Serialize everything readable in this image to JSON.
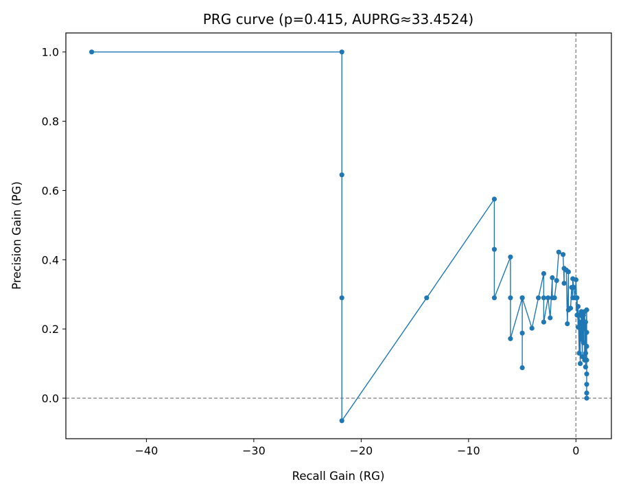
{
  "chart_data": {
    "type": "line",
    "title": "PRG curve (p=0.415, AUPRG≈33.4524)",
    "xlabel": "Recall Gain (RG)",
    "ylabel": "Precision Gain (PG)",
    "xlim": [
      -47.5,
      3.3
    ],
    "ylim": [
      -0.117,
      1.055
    ],
    "x_ticks": [
      -40,
      -30,
      -20,
      -10,
      0
    ],
    "x_tick_labels": [
      "−40",
      "−30",
      "−20",
      "−10",
      "0"
    ],
    "y_ticks": [
      0.0,
      0.2,
      0.4,
      0.6,
      0.8,
      1.0
    ],
    "y_tick_labels": [
      "0.0",
      "0.2",
      "0.4",
      "0.6",
      "0.8",
      "1.0"
    ],
    "reference_lines": [
      {
        "orientation": "vertical",
        "value": 0,
        "style": "dashed",
        "color": "#808080"
      },
      {
        "orientation": "horizontal",
        "value": 0,
        "style": "dashed",
        "color": "#808080"
      }
    ],
    "grid": false,
    "series": [
      {
        "color": "#1f77b4",
        "marker": "circle",
        "x": [
          -45.1,
          -21.8,
          -21.8,
          -21.8,
          -21.8,
          -13.9,
          -7.6,
          -7.6,
          -7.6,
          -6.1,
          -6.1,
          -6.1,
          -5.0,
          -5.0,
          -5.0,
          -5.0,
          -4.1,
          -3.5,
          -3.0,
          -3.0,
          -3.0,
          -2.6,
          -2.4,
          -2.2,
          -2.2,
          -2.0,
          -1.8,
          -1.6,
          -1.2,
          -1.1,
          -1.1,
          -0.9,
          -0.8,
          -0.7,
          -0.7,
          -0.5,
          -0.4,
          -0.3,
          -0.3,
          -0.2,
          -0.1,
          0.0,
          0.1,
          0.1,
          0.2,
          0.2,
          0.3,
          0.3,
          0.4,
          0.4,
          0.5,
          0.5,
          0.6,
          0.6,
          0.7,
          0.7,
          0.8,
          0.8,
          0.8,
          0.9,
          0.9,
          0.9,
          1.0,
          1.0,
          1.0,
          1.0,
          1.0,
          1.0,
          1.0,
          1.0
        ],
        "y": [
          1.0,
          1.0,
          0.645,
          0.29,
          -0.065,
          0.29,
          0.575,
          0.43,
          0.29,
          0.408,
          0.29,
          0.172,
          0.29,
          0.188,
          0.088,
          0.29,
          0.202,
          0.29,
          0.36,
          0.29,
          0.22,
          0.29,
          0.232,
          0.348,
          0.29,
          0.29,
          0.34,
          0.422,
          0.415,
          0.332,
          0.375,
          0.37,
          0.215,
          0.365,
          0.255,
          0.26,
          0.32,
          0.29,
          0.345,
          0.32,
          0.29,
          0.342,
          0.24,
          0.29,
          0.205,
          0.265,
          0.13,
          0.24,
          0.1,
          0.22,
          0.17,
          0.25,
          0.12,
          0.235,
          0.16,
          0.24,
          0.2,
          0.11,
          0.25,
          0.13,
          0.22,
          0.09,
          0.255,
          0.15,
          0.07,
          0.19,
          0.04,
          0.11,
          0.015,
          0.0
        ]
      }
    ]
  }
}
